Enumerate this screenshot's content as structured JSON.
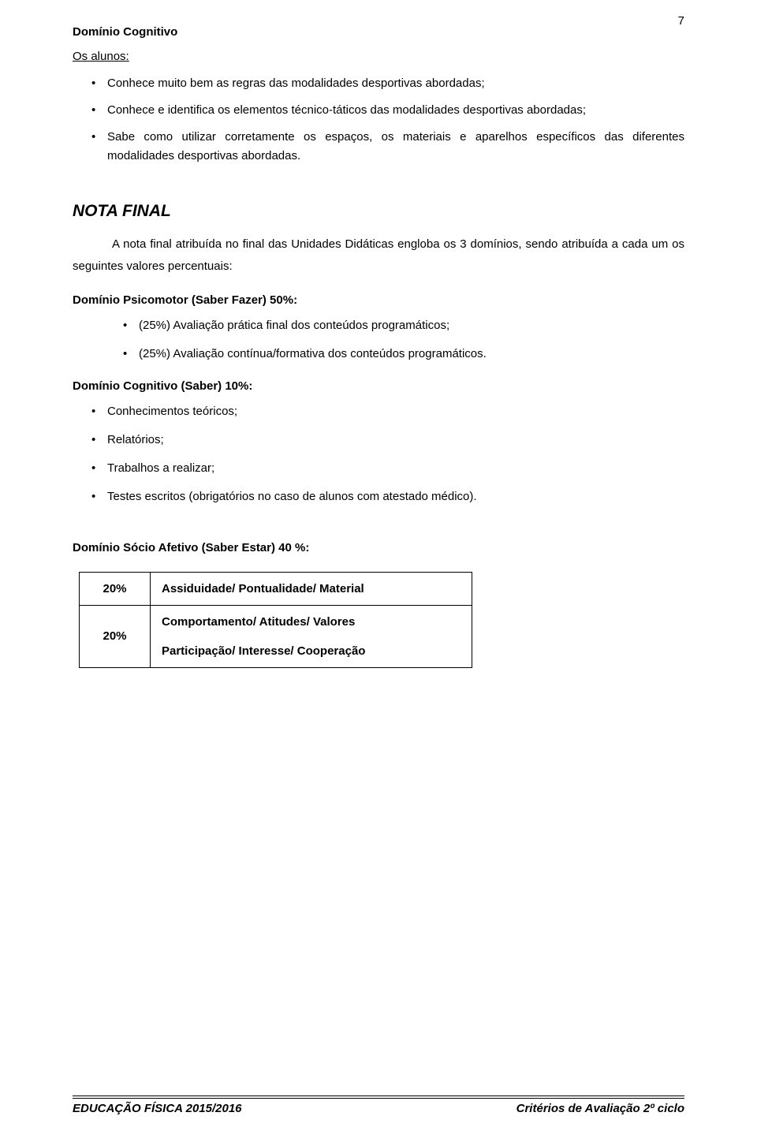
{
  "pageNumber": "7",
  "section1": {
    "title": "Domínio Cognitivo",
    "intro": "Os alunos:",
    "items": [
      "Conhece muito bem as regras das modalidades desportivas abordadas;",
      "Conhece e identifica os elementos técnico-táticos das modalidades desportivas abordadas;",
      "Sabe como utilizar corretamente os espaços, os materiais e aparelhos específicos das diferentes modalidades desportivas abordadas."
    ]
  },
  "notaFinal": {
    "title": "NOTA FINAL",
    "paragraph": "A nota final atribuída no final das Unidades Didáticas engloba os 3 domínios, sendo atribuída a cada um os seguintes valores percentuais:"
  },
  "psicomotor": {
    "heading": "Domínio Psicomotor (Saber Fazer) 50%:",
    "items": [
      "(25%) Avaliação prática final dos conteúdos programáticos;",
      "(25%) Avaliação contínua/formativa dos conteúdos programáticos."
    ]
  },
  "cognitivo": {
    "heading": "Domínio Cognitivo (Saber) 10%:",
    "items": [
      "Conhecimentos teóricos;",
      "Relatórios;",
      "Trabalhos a realizar;",
      "Testes escritos (obrigatórios no caso de alunos com atestado médico)."
    ]
  },
  "socio": {
    "heading": "Domínio Sócio Afetivo (Saber Estar) 40 %:",
    "rows": [
      {
        "pct": "20%",
        "desc1": "Assiduidade/ Pontualidade/ Material",
        "desc2": ""
      },
      {
        "pct": "20%",
        "desc1": "Comportamento/ Atitudes/ Valores",
        "desc2": "Participação/ Interesse/ Cooperação"
      }
    ]
  },
  "footer": {
    "left": "EDUCAÇÃO FÍSICA 2015/2016",
    "right": "Critérios de Avaliação 2º ciclo"
  }
}
